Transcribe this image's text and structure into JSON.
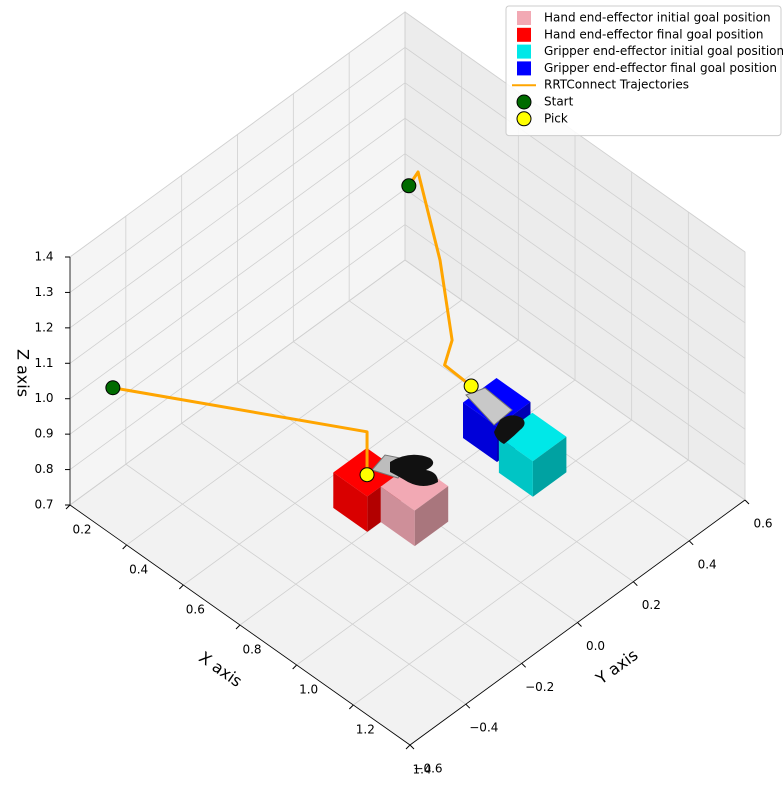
{
  "chart_data": {
    "type": "scatter3d",
    "xlabel": "X axis",
    "ylabel": "Y axis",
    "zlabel": "Z axis",
    "xlim": [
      0.2,
      1.4
    ],
    "ylim": [
      -0.6,
      0.6
    ],
    "zlim": [
      0.7,
      1.4
    ],
    "xticks": [
      0.2,
      0.4,
      0.6,
      0.8,
      {
        "value": 1,
        "label": "1.0"
      },
      1.2,
      1.4
    ],
    "yticks": [
      {
        "value": -0.6,
        "label": "−0.6"
      },
      {
        "value": -0.4,
        "label": "−0.4"
      },
      {
        "value": -0.2,
        "label": "−0.2"
      },
      {
        "value": 0,
        "label": "0.0"
      },
      0.2,
      0.4,
      0.6
    ],
    "zticks": [
      0.7,
      0.8,
      0.9,
      {
        "value": 1,
        "label": "1.0"
      },
      1.1,
      1.2,
      1.3,
      1.4
    ],
    "grid": true,
    "legend": "upper right",
    "series": [
      {
        "name": "Hand end-effector initial goal position",
        "kind": "cube",
        "color": "#f2a9b4",
        "x": [
          0.86
        ],
        "y": [
          -0.036
        ],
        "z": [
          0.75
        ]
      },
      {
        "name": "Hand end-effector final goal position",
        "kind": "cube",
        "color": "#ff0000",
        "x": [
          0.74
        ],
        "y": [
          -0.084
        ],
        "z": [
          0.75
        ]
      },
      {
        "name": "Gripper end-effector initial goal position",
        "kind": "cube",
        "color": "#00e8e8",
        "x": [
          0.951
        ],
        "y": [
          0.295
        ],
        "z": [
          0.75
        ]
      },
      {
        "name": "Gripper end-effector final goal position",
        "kind": "cube",
        "color": "#0000ff",
        "x": [
          0.849
        ],
        "y": [
          0.27
        ],
        "z": [
          0.805
        ]
      },
      {
        "name": "RRTConnect Trajectories",
        "kind": "line",
        "color": "#ffa500",
        "lines": [
          {
            "x": [
              0.304,
              0.74,
              0.74
            ],
            "y": [
              -0.552,
              -0.084,
              -0.084
            ],
            "z": [
              1.062,
              0.914,
              0.793
            ]
          },
          {
            "x": [
              0.585,
              0.592,
              0.702,
              0.786,
              0.79,
              0.872
            ],
            "y": [
              0.223,
              0.249,
              0.216,
              0.174,
              0.143,
              0.155
            ],
            "z": [
              1.344,
              1.372,
              1.204,
              1.05,
              1.0,
              0.98
            ]
          }
        ]
      },
      {
        "name": "Start",
        "kind": "point",
        "color": "#006b00",
        "x": [
          0.304,
          0.585
        ],
        "y": [
          -0.552,
          0.223
        ],
        "z": [
          1.062,
          1.344
        ]
      },
      {
        "name": "Pick",
        "kind": "point",
        "color": "#ffff00",
        "x": [
          0.74,
          0.872
        ],
        "y": [
          -0.084,
          0.155
        ],
        "z": [
          0.793,
          0.98
        ]
      }
    ]
  }
}
